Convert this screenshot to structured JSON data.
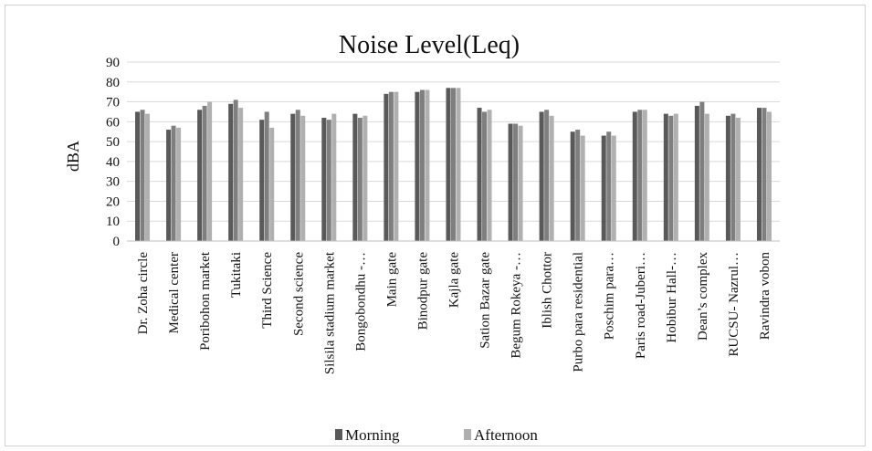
{
  "chart_data": {
    "type": "bar",
    "title": "Noise Level(Leq)",
    "xlabel": "",
    "ylabel": "dBA",
    "ylim": [
      0,
      90
    ],
    "yticks": [
      0,
      10,
      20,
      30,
      40,
      50,
      60,
      70,
      80,
      90
    ],
    "grid": true,
    "legend_position": "bottom",
    "categories": [
      "Dr. Zoha circle",
      "Medical center",
      "Poribohon market",
      "Tukitaki",
      "Third Science",
      "Second science",
      "Silsila stadium market",
      "Bongobondhu -…",
      "Main gate",
      "Binodpur gate",
      "Kajla gate",
      "Sation Bazar gate",
      "Begum Rokeya -…",
      "Iblish Chottor",
      "Purbo para residential",
      "Poschim para…",
      "Paris road-Juberi…",
      "Hobibur Hall-…",
      "Dean’s complex",
      "RUCSU- Nazrul…",
      "Ravindra vobon"
    ],
    "series": [
      {
        "name": "Morning",
        "color": "#595959",
        "values": [
          65,
          56,
          66,
          69,
          61,
          64,
          62,
          64,
          74,
          75,
          77,
          67,
          59,
          65,
          55,
          53,
          65,
          64,
          68,
          63,
          67
        ]
      },
      {
        "name": "",
        "color": "#7f7f7f",
        "values": [
          66,
          58,
          68,
          71,
          65,
          66,
          61,
          62,
          75,
          76,
          77,
          65,
          59,
          66,
          56,
          55,
          66,
          63,
          70,
          64,
          67
        ]
      },
      {
        "name": "Afternoon",
        "color": "#b0b0b0",
        "values": [
          64,
          57,
          70,
          67,
          57,
          63,
          64,
          63,
          75,
          76,
          77,
          66,
          58,
          63,
          53,
          53,
          66,
          64,
          64,
          62,
          65
        ]
      }
    ]
  }
}
